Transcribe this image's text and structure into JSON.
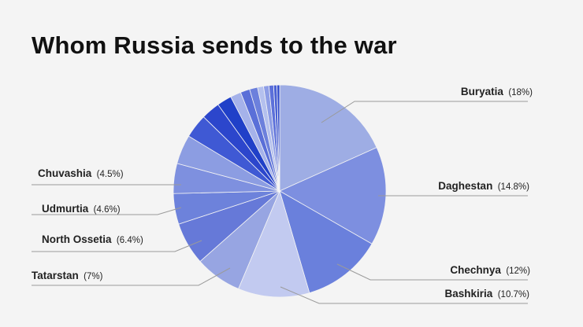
{
  "chart_data": {
    "type": "pie",
    "title": "Whom Russia sends to the war",
    "labeled_slices": [
      {
        "name": "Buryatia",
        "pct_label": "(18%)",
        "value": 18,
        "color": "#9eade4"
      },
      {
        "name": "Daghestan",
        "pct_label": "(14.8%)",
        "value": 14.8,
        "color": "#7d8fe0"
      },
      {
        "name": "Chechnya",
        "pct_label": "(12%)",
        "value": 12,
        "color": "#6a80dc"
      },
      {
        "name": "Bashkiria",
        "pct_label": "(10.7%)",
        "value": 10.7,
        "color": "#c2caf0"
      },
      {
        "name": "Tatarstan",
        "pct_label": "(7%)",
        "value": 7,
        "color": "#97a5e2"
      },
      {
        "name": "North Ossetia",
        "pct_label": "(6.4%)",
        "value": 6.4,
        "color": "#6679d8"
      },
      {
        "name": "Udmurtia",
        "pct_label": "(4.6%)",
        "value": 4.6,
        "color": "#6d82db"
      },
      {
        "name": "Chuvashia",
        "pct_label": "(4.5%)",
        "value": 4.5,
        "color": "#7e90df"
      }
    ],
    "other_slices": [
      {
        "value": 4.4,
        "color": "#8c9de2"
      },
      {
        "value": 3.6,
        "color": "#3f59d4"
      },
      {
        "value": 2.8,
        "color": "#2c46cc"
      },
      {
        "value": 2.2,
        "color": "#2040c8"
      },
      {
        "value": 1.6,
        "color": "#a5b2ea"
      },
      {
        "value": 1.4,
        "color": "#5a6fd8"
      },
      {
        "value": 1.2,
        "color": "#6c80dc"
      },
      {
        "value": 0.9,
        "color": "#b4c0ee"
      },
      {
        "value": 0.8,
        "color": "#8d9de6"
      },
      {
        "value": 0.7,
        "color": "#5c70da"
      },
      {
        "value": 0.5,
        "color": "#4a61d4"
      },
      {
        "value": 0.4,
        "color": "#2f49cc"
      }
    ]
  }
}
